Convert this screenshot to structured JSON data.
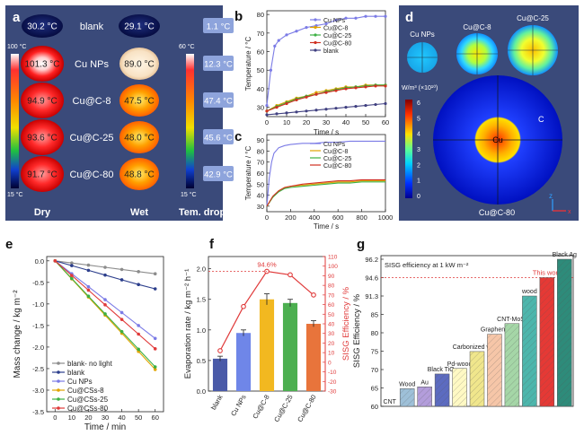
{
  "panels": {
    "a": {
      "letter": "a",
      "rows": [
        "blank",
        "Cu NPs",
        "Cu@C-8",
        "Cu@C-25",
        "Cu@C-80"
      ],
      "dry_temps": [
        "30.2 °C",
        "101.3 °C",
        "94.9 °C",
        "93.6 °C",
        "91.7 °C"
      ],
      "wet_temps": [
        "29.1 °C",
        "89.0 °C",
        "47.5 °C",
        "48.0 °C",
        "48.8 °C"
      ],
      "drops": [
        "1.1 °C",
        "12.3 °C",
        "47.4 °C",
        "45.6 °C",
        "42.9 °C"
      ],
      "scale_left": {
        "max": "100 °C",
        "min": "15 °C"
      },
      "scale_right": {
        "max": "60 °C",
        "min": "15 °C"
      },
      "col_labels": [
        "Dry",
        "Wet",
        "Tem. drop"
      ]
    },
    "d": {
      "letter": "d",
      "labels": [
        "Cu NPs",
        "Cu@C-8",
        "Cu@C-25",
        "Cu@C-80"
      ],
      "unit": "W/m³ (×10¹⁰)",
      "ticks": [
        "6",
        "5",
        "4",
        "3",
        "2",
        "1",
        "0"
      ],
      "inner_labels": [
        "Cu",
        "C"
      ],
      "axes": [
        "z",
        "x"
      ]
    }
  },
  "chart_data": [
    {
      "id": "b",
      "letter": "b",
      "type": "line",
      "xlabel": "Time / s",
      "ylabel": "Temperature / °C",
      "xlim": [
        0,
        60
      ],
      "ylim": [
        25,
        82
      ],
      "xticks": [
        "0",
        "10",
        "20",
        "30",
        "40",
        "50",
        "60"
      ],
      "yticks": [
        "30",
        "40",
        "50",
        "60",
        "70",
        "80"
      ],
      "series": [
        {
          "name": "Cu NPs",
          "color": "#7b7be6",
          "x": [
            0,
            2,
            4,
            6,
            10,
            15,
            20,
            25,
            30,
            35,
            40,
            45,
            50,
            55,
            60
          ],
          "y": [
            31,
            50,
            63,
            66,
            69,
            71,
            73,
            74,
            75,
            77,
            78,
            78,
            79,
            79,
            79
          ]
        },
        {
          "name": "Cu@C-8",
          "color": "#e0a400",
          "x": [
            0,
            5,
            10,
            15,
            20,
            25,
            30,
            35,
            40,
            45,
            50,
            55,
            60
          ],
          "y": [
            28,
            31,
            33,
            35,
            36,
            38,
            39,
            40,
            41,
            41,
            42,
            42,
            42
          ]
        },
        {
          "name": "Cu@C-25",
          "color": "#3cb043",
          "x": [
            0,
            5,
            10,
            15,
            20,
            25,
            30,
            35,
            40,
            45,
            50,
            55,
            60
          ],
          "y": [
            28,
            30.5,
            32.5,
            34.5,
            36,
            37,
            38.5,
            39.5,
            40.5,
            41,
            41.5,
            42,
            42
          ]
        },
        {
          "name": "Cu@C-80",
          "color": "#d03020",
          "x": [
            0,
            5,
            10,
            15,
            20,
            25,
            30,
            35,
            40,
            45,
            50,
            55,
            60
          ],
          "y": [
            28,
            30,
            32,
            34,
            35.5,
            37,
            38,
            39,
            40,
            40.5,
            41,
            41.5,
            41.5
          ]
        },
        {
          "name": "blank",
          "color": "#404080",
          "x": [
            0,
            5,
            10,
            15,
            20,
            25,
            30,
            35,
            40,
            45,
            50,
            55,
            60
          ],
          "y": [
            26,
            26.5,
            27,
            27.5,
            28,
            28.5,
            29,
            29.5,
            30,
            30.5,
            31,
            31.5,
            32
          ]
        }
      ]
    },
    {
      "id": "c",
      "letter": "c",
      "type": "line",
      "xlabel": "Time / s",
      "ylabel": "Temperature / °C",
      "xlim": [
        0,
        1000
      ],
      "ylim": [
        25,
        95
      ],
      "xticks": [
        "0",
        "200",
        "400",
        "600",
        "800",
        "1000"
      ],
      "yticks": [
        "30",
        "40",
        "50",
        "60",
        "70",
        "80",
        "90"
      ],
      "series": [
        {
          "name": "Cu NPs",
          "color": "#7b7be6",
          "x": [
            0,
            20,
            40,
            60,
            100,
            150,
            200,
            300,
            400,
            500,
            600,
            700,
            800,
            900,
            1000
          ],
          "y": [
            30,
            55,
            70,
            78,
            83,
            85,
            86,
            87,
            87,
            88,
            88,
            89,
            89,
            89,
            89
          ]
        },
        {
          "name": "Cu@C-8",
          "color": "#e0a400",
          "x": [
            0,
            50,
            100,
            150,
            200,
            300,
            400,
            500,
            600,
            700,
            800,
            900,
            1000
          ],
          "y": [
            30,
            38,
            44,
            47,
            48,
            49,
            50,
            51,
            52,
            52,
            53,
            53,
            53
          ]
        },
        {
          "name": "Cu@C-25",
          "color": "#3cb043",
          "x": [
            0,
            50,
            100,
            150,
            200,
            300,
            400,
            500,
            600,
            700,
            800,
            900,
            1000
          ],
          "y": [
            30,
            38,
            43,
            46,
            47,
            48,
            49,
            50,
            51,
            51,
            52,
            52,
            52
          ]
        },
        {
          "name": "Cu@C-80",
          "color": "#d03020",
          "x": [
            0,
            50,
            100,
            150,
            200,
            300,
            400,
            500,
            600,
            700,
            800,
            900,
            1000
          ],
          "y": [
            30,
            39,
            44,
            47,
            48,
            50,
            51,
            52,
            53,
            53,
            54,
            54,
            54
          ]
        }
      ]
    },
    {
      "id": "e",
      "letter": "e",
      "type": "line",
      "xlabel": "Time / min",
      "ylabel": "Mass change / kg m⁻²",
      "xlim": [
        -5,
        65
      ],
      "ylim": [
        -3.5,
        0.1
      ],
      "xticks": [
        "0",
        "10",
        "20",
        "30",
        "40",
        "50",
        "60"
      ],
      "yticks": [
        "0.0",
        "-0.5",
        "-1.0",
        "-1.5",
        "-2.0",
        "-2.5",
        "-3.0",
        "-3.5"
      ],
      "series": [
        {
          "name": "blank- no light",
          "color": "#8c8c8c",
          "x": [
            0,
            10,
            20,
            30,
            40,
            50,
            60
          ],
          "y": [
            0,
            -0.05,
            -0.1,
            -0.15,
            -0.2,
            -0.25,
            -0.3
          ]
        },
        {
          "name": "blank",
          "color": "#2c3e8c",
          "x": [
            0,
            10,
            20,
            30,
            40,
            50,
            60
          ],
          "y": [
            0,
            -0.11,
            -0.22,
            -0.33,
            -0.44,
            -0.55,
            -0.65
          ]
        },
        {
          "name": "Cu NPs",
          "color": "#7b7be6",
          "x": [
            0,
            10,
            20,
            30,
            40,
            50,
            60
          ],
          "y": [
            0,
            -0.3,
            -0.6,
            -0.9,
            -1.2,
            -1.5,
            -1.8
          ]
        },
        {
          "name": "Cu@CSs-8",
          "color": "#e0a400",
          "x": [
            0,
            10,
            20,
            30,
            40,
            50,
            60
          ],
          "y": [
            0,
            -0.42,
            -0.84,
            -1.26,
            -1.68,
            -2.1,
            -2.52
          ]
        },
        {
          "name": "Cu@CSs-25",
          "color": "#3cb043",
          "x": [
            0,
            10,
            20,
            30,
            40,
            50,
            60
          ],
          "y": [
            0,
            -0.41,
            -0.82,
            -1.23,
            -1.64,
            -2.05,
            -2.46
          ]
        },
        {
          "name": "Cu@CSs-80",
          "color": "#e03a3a",
          "x": [
            0,
            10,
            20,
            30,
            40,
            50,
            60
          ],
          "y": [
            0,
            -0.34,
            -0.68,
            -1.02,
            -1.36,
            -1.7,
            -2.04
          ]
        }
      ]
    },
    {
      "id": "f",
      "letter": "f",
      "type": "bar",
      "ylabel": "Evaporation rate / kg m⁻² h⁻¹",
      "y2label": "SISG Efficiency / %",
      "categories": [
        "blank",
        "Cu NPs",
        "Cu@C-8",
        "Cu@C-25",
        "Cu@C-80"
      ],
      "values": [
        0.53,
        0.95,
        1.5,
        1.44,
        1.1
      ],
      "errors": [
        0.04,
        0.05,
        0.09,
        0.06,
        0.05
      ],
      "bar_colors": [
        "#4a5aa8",
        "#6f86e8",
        "#f2b820",
        "#4caf50",
        "#e8743b"
      ],
      "efficiency": [
        12,
        58,
        94.6,
        91,
        70
      ],
      "peak_label": "94.6%",
      "ylim": [
        0,
        2.2
      ],
      "y2lim": [
        -30,
        110
      ],
      "yticks": [
        "0.0",
        "0.5",
        "1.0",
        "1.5",
        "2.0"
      ],
      "y2ticks": [
        "110",
        "100",
        "90",
        "80",
        "70",
        "60",
        "50",
        "40",
        "30",
        "20",
        "10",
        "0",
        "-10",
        "-20",
        "-30"
      ]
    },
    {
      "id": "g",
      "letter": "g",
      "type": "bar",
      "title": "SISG efficiency at 1 kW m⁻²",
      "ylabel": "SISG Efficiency / %",
      "categories": [
        "CNT",
        "Wood",
        "Au",
        "Black TiO₂",
        "Pd-wood",
        "Carbonized wood",
        "Graphene",
        "CNT-MoS₂",
        "wood",
        "This work",
        "Black Ag"
      ],
      "values": [
        60,
        64.8,
        65.3,
        68.8,
        70.3,
        74.9,
        79.6,
        82.5,
        91.3,
        94.6,
        96.2
      ],
      "bar_colors": [
        "#7f7f7f",
        "#9ec0d8",
        "#b39ddb",
        "#5c6bc0",
        "#fff9c4",
        "#f0e68c",
        "#f6c6a8",
        "#a5d6a7",
        "#4db6ac",
        "#e53935",
        "#2e8b7a"
      ],
      "yticks": [
        "60",
        "65",
        "70",
        "75",
        "80",
        "85",
        "91.3",
        "94.6",
        "96.2"
      ],
      "ref_value": 94.6
    }
  ]
}
